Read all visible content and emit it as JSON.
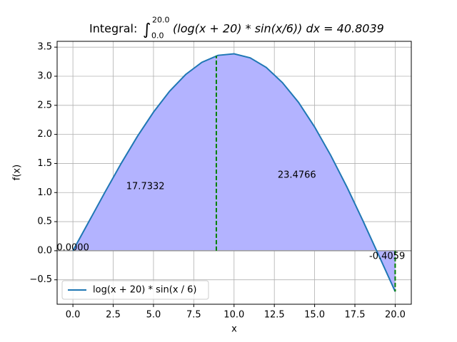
{
  "chart_data": {
    "type": "line",
    "title": {
      "prefix": "Integral:",
      "lower": "0.0",
      "upper": "20.0",
      "body": "(log(x + 20) * sin(x/6)) dx = 40.8039"
    },
    "xlabel": "x",
    "ylabel": "f(x)",
    "x": [
      0,
      1,
      2,
      3,
      4,
      5,
      6,
      7,
      8,
      9,
      10,
      11,
      12,
      13,
      14,
      15,
      16,
      17,
      18,
      19,
      20
    ],
    "series": [
      {
        "name": "log(x + 20) * sin(x / 6)",
        "color": "#1f77b4",
        "values": [
          0,
          0.5051,
          1.0114,
          1.5032,
          1.9652,
          2.3825,
          2.7416,
          3.0303,
          3.2387,
          3.3588,
          3.3855,
          3.3163,
          3.1514,
          2.891,
          2.5515,
          2.1278,
          1.6396,
          1.0982,
          0.5133,
          -0.0918,
          -0.7018
        ]
      }
    ],
    "fill_color": "#b3b3ff",
    "dividers": {
      "color": "#008000",
      "x": [
        8.9,
        20
      ],
      "y": [
        3.3508,
        -0.7018
      ]
    },
    "annotations": [
      {
        "text": "0.0000",
        "x": 0,
        "y": 0.05
      },
      {
        "text": "17.7332",
        "x": 4.5,
        "y": 1.1
      },
      {
        "text": "23.4766",
        "x": 13.9,
        "y": 1.3
      },
      {
        "text": "-0.4059",
        "x": 19.5,
        "y": -0.1
      }
    ],
    "xlim": [
      -0.98,
      21.0
    ],
    "ylim": [
      -0.92,
      3.6
    ],
    "xticks": [
      {
        "value": 0,
        "label": "0.0"
      },
      {
        "value": 2.5,
        "label": "2.5"
      },
      {
        "value": 5,
        "label": "5.0"
      },
      {
        "value": 7.5,
        "label": "7.5"
      },
      {
        "value": 10,
        "label": "10.0"
      },
      {
        "value": 12.5,
        "label": "12.5"
      },
      {
        "value": 15,
        "label": "15.0"
      },
      {
        "value": 17.5,
        "label": "17.5"
      },
      {
        "value": 20,
        "label": "20.0"
      }
    ],
    "yticks": [
      {
        "value": -0.5,
        "label": "−0.5"
      },
      {
        "value": 0,
        "label": "0.0"
      },
      {
        "value": 0.5,
        "label": "0.5"
      },
      {
        "value": 1,
        "label": "1.0"
      },
      {
        "value": 1.5,
        "label": "1.5"
      },
      {
        "value": 2,
        "label": "2.0"
      },
      {
        "value": 2.5,
        "label": "2.5"
      },
      {
        "value": 3,
        "label": "3.0"
      },
      {
        "value": 3.5,
        "label": "3.5"
      }
    ],
    "grid": true,
    "legend": "lower left"
  }
}
